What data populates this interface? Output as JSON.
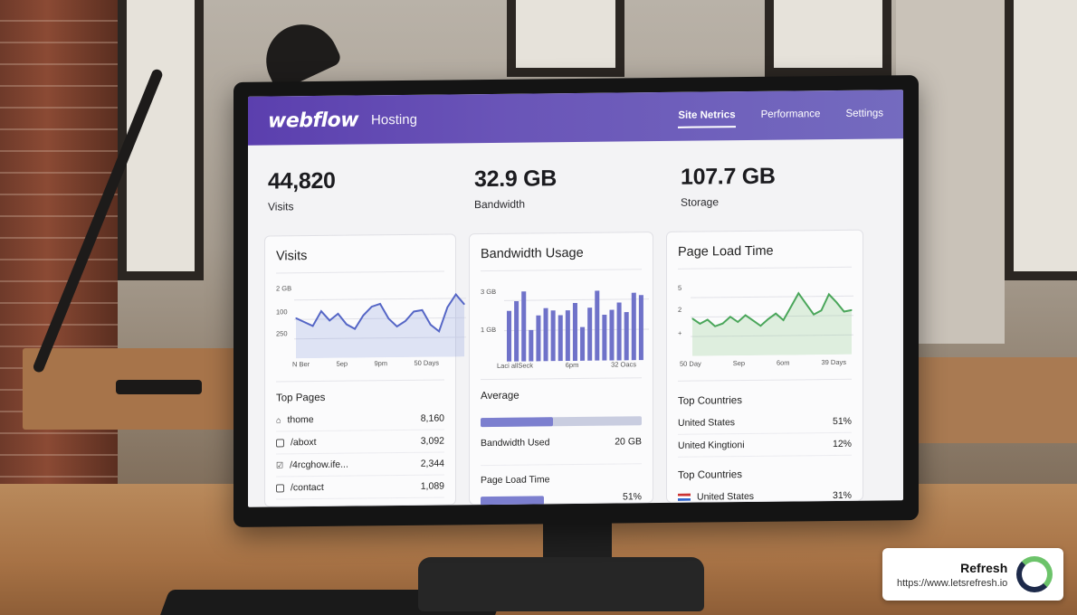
{
  "app": {
    "logo": "webflow",
    "product": "Hosting",
    "colors": {
      "accent": "#5b3fae",
      "chart_blue": "#5566c6",
      "chart_green": "#4aa65a",
      "bar": "#6f72c9"
    }
  },
  "nav": {
    "tabs": [
      {
        "label": "Site Netrics",
        "active": true
      },
      {
        "label": "Performance"
      },
      {
        "label": "Settings"
      }
    ]
  },
  "kpis": [
    {
      "value": "44,820",
      "label": "Visits"
    },
    {
      "value": "32.9 GB",
      "label": "Bandwidth"
    },
    {
      "value": "107.7 GB",
      "label": "Storage"
    }
  ],
  "visits_card": {
    "title": "Visits",
    "y_ticks": [
      "2 GB",
      "100",
      "250"
    ],
    "x_ticks": [
      "N Ber",
      "5ep",
      "9pm",
      "50 Days"
    ],
    "section": "Top Pages",
    "pages": [
      {
        "path": "thome",
        "count": "8,160",
        "icon": "home-icon"
      },
      {
        "path": "/aboxt",
        "count": "3,092",
        "icon": "page-icon"
      },
      {
        "path": "/4rcghow.ife...",
        "count": "2,344",
        "icon": "check-icon"
      },
      {
        "path": "/contact",
        "count": "1,089",
        "icon": "page-icon"
      }
    ]
  },
  "bandwidth_card": {
    "title": "Bandwidth Usage",
    "y_ticks": [
      "3 GB",
      "1 GB"
    ],
    "x_ticks": [
      "Laci allSeck",
      "6pm",
      "32 Oacs"
    ],
    "average_label": "Average",
    "average_fill": 0.45,
    "used_label": "Bandwidth Used",
    "used_value": "20 GB",
    "plt_label": "Page Load Time",
    "plt_fill": 0.4,
    "plt_value": "51%"
  },
  "plt_card": {
    "title": "Page Load Time",
    "y_ticks": [
      "5",
      "2",
      "+"
    ],
    "x_ticks": [
      "50 Day",
      "Sep",
      "6om",
      "39 Days"
    ],
    "section1": "Top Countries",
    "countries": [
      {
        "name": "United States",
        "value": "51%"
      },
      {
        "name": "United Kingtioni",
        "value": "12%"
      }
    ],
    "section2": "Top Countries",
    "countries2": [
      {
        "name": "United States",
        "value": "31%"
      }
    ]
  },
  "chart_data": [
    {
      "type": "area",
      "title": "Visits",
      "series": [
        {
          "values": [
            52,
            46,
            40,
            62,
            48,
            58,
            42,
            35,
            55,
            68,
            72,
            50,
            38,
            46,
            60,
            62,
            40,
            30,
            66,
            85,
            70
          ]
        }
      ]
    },
    {
      "type": "bar",
      "title": "Bandwidth Usage",
      "series": [
        {
          "values": [
            2.1,
            2.5,
            2.9,
            1.3,
            1.9,
            2.2,
            2.1,
            1.9,
            2.1,
            2.4,
            1.4,
            2.2,
            2.9,
            1.9,
            2.1,
            2.4,
            2.0,
            2.8,
            2.7
          ]
        }
      ],
      "ylim": [
        0,
        3
      ]
    },
    {
      "type": "area",
      "title": "Page Load Time",
      "series": [
        {
          "values": [
            2.4,
            2.0,
            2.3,
            1.8,
            2.0,
            2.5,
            2.1,
            2.6,
            2.2,
            1.8,
            2.3,
            2.7,
            2.2,
            3.2,
            4.2,
            3.4,
            2.6,
            2.9,
            4.1,
            3.5,
            2.8,
            2.9
          ]
        }
      ],
      "ylim": [
        0,
        5
      ]
    }
  ],
  "badge": {
    "name": "Refresh",
    "url": "https://www.letsrefresh.io"
  }
}
